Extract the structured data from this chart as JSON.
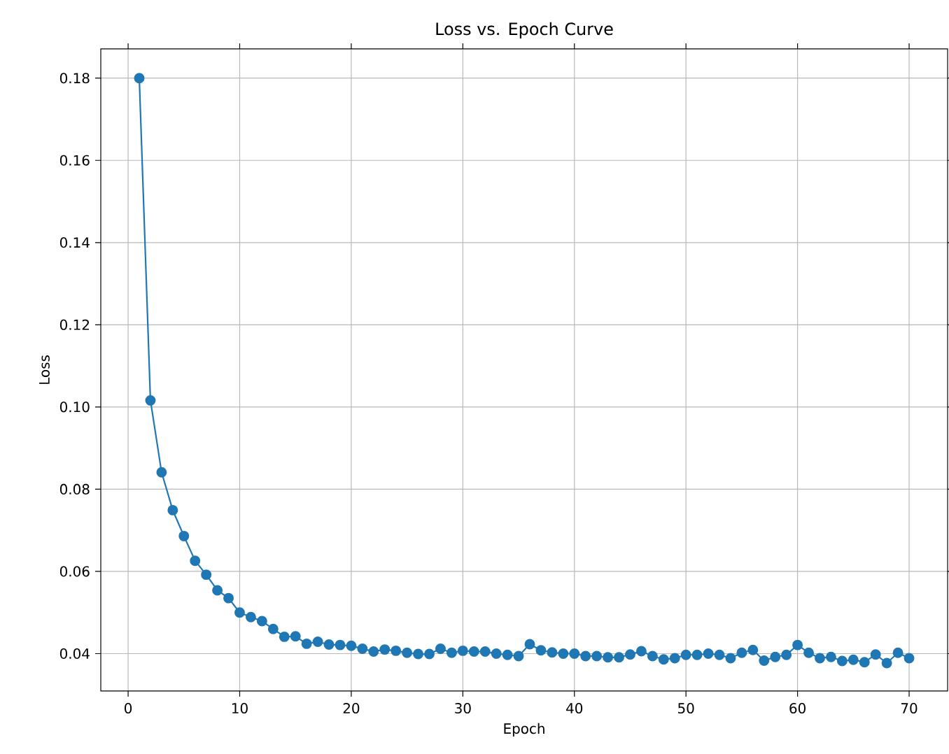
{
  "chart_data": {
    "type": "line",
    "title": "Loss vs. Epoch Curve",
    "xlabel": "Epoch",
    "ylabel": "Loss",
    "x": [
      1,
      2,
      3,
      4,
      5,
      6,
      7,
      8,
      9,
      10,
      11,
      12,
      13,
      14,
      15,
      16,
      17,
      18,
      19,
      20,
      21,
      22,
      23,
      24,
      25,
      26,
      27,
      28,
      29,
      30,
      31,
      32,
      33,
      34,
      35,
      36,
      37,
      38,
      39,
      40,
      41,
      42,
      43,
      44,
      45,
      46,
      47,
      48,
      49,
      50,
      51,
      52,
      53,
      54,
      55,
      56,
      57,
      58,
      59,
      60,
      61,
      62,
      63,
      64,
      65,
      66,
      67,
      68,
      69,
      70
    ],
    "series": [
      {
        "color": "#1f77b4",
        "values": [
          0.18,
          0.1016,
          0.0841,
          0.0749,
          0.0686,
          0.0626,
          0.0592,
          0.0554,
          0.0535,
          0.05,
          0.0489,
          0.0479,
          0.046,
          0.0441,
          0.0442,
          0.0424,
          0.0429,
          0.0422,
          0.0421,
          0.0419,
          0.0412,
          0.0405,
          0.041,
          0.0407,
          0.0402,
          0.0399,
          0.0399,
          0.0412,
          0.0402,
          0.0407,
          0.0405,
          0.0405,
          0.04,
          0.0397,
          0.0394,
          0.0423,
          0.0408,
          0.0403,
          0.04,
          0.04,
          0.0394,
          0.0394,
          0.0391,
          0.0391,
          0.0398,
          0.0406,
          0.0394,
          0.0386,
          0.0389,
          0.0397,
          0.0397,
          0.04,
          0.0397,
          0.0389,
          0.0402,
          0.0409,
          0.0383,
          0.0392,
          0.0397,
          0.0421,
          0.0402,
          0.0389,
          0.0392,
          0.0382,
          0.0385,
          0.0379,
          0.0398,
          0.0377,
          0.0402,
          0.0389
        ]
      }
    ],
    "xlim": [
      -2.45,
      73.45
    ],
    "ylim": [
      0.0309,
      0.1871
    ],
    "xticks": [
      0,
      10,
      20,
      30,
      40,
      50,
      60,
      70
    ],
    "yticks": [
      {
        "value": 0.04,
        "label": "0.04"
      },
      {
        "value": 0.06,
        "label": "0.06"
      },
      {
        "value": 0.08,
        "label": "0.08"
      },
      {
        "value": 0.1,
        "label": "0.10"
      },
      {
        "value": 0.12,
        "label": "0.12"
      },
      {
        "value": 0.14,
        "label": "0.14"
      },
      {
        "value": 0.16,
        "label": "0.16"
      },
      {
        "value": 0.18,
        "label": "0.18"
      }
    ],
    "grid": true,
    "marker": "circle",
    "line_style": "solid"
  }
}
